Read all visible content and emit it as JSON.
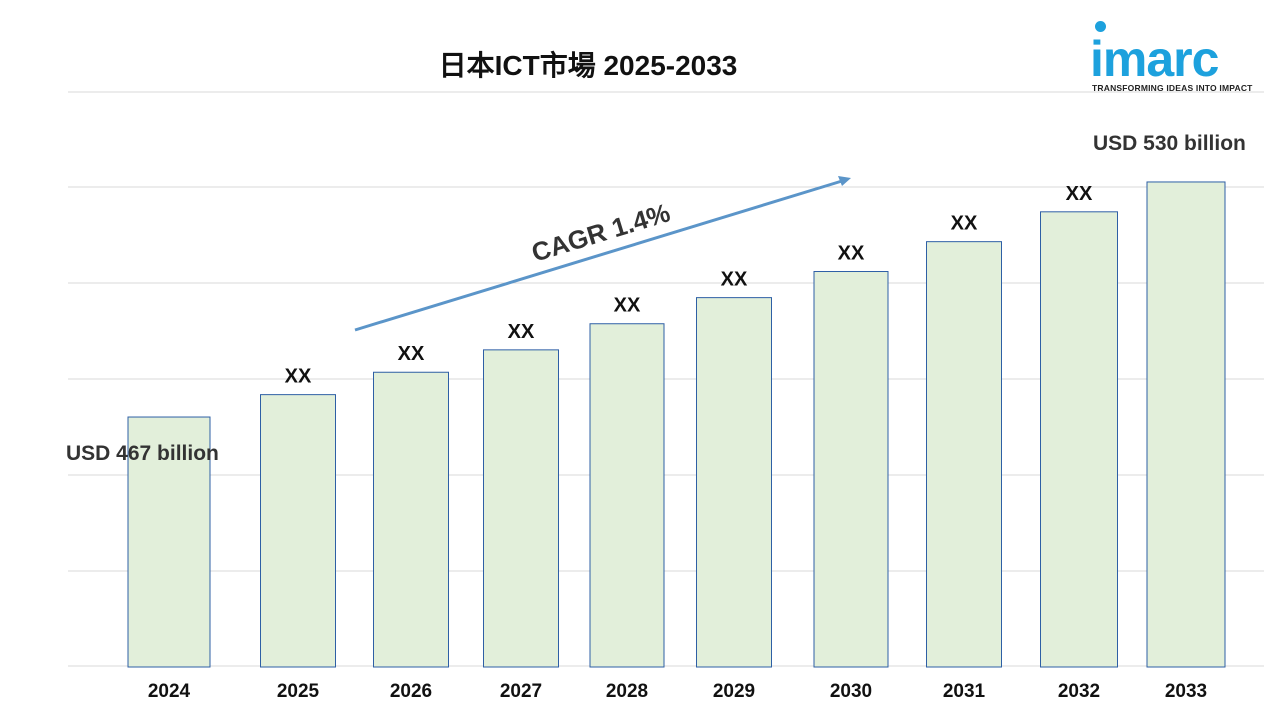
{
  "title": "日本ICT市場 2025-2033",
  "logo": {
    "word": "imarc",
    "tagline": "TRANSFORMING IDEAS INTO IMPACT"
  },
  "colors": {
    "bar_fill": "#e2efda",
    "bar_stroke": "#2e5fa5",
    "arrow": "#5b95c9",
    "brand": "#1da1dd"
  },
  "chart_data": {
    "type": "bar",
    "title": "日本ICT市場 2025-2033",
    "xlabel": "",
    "ylabel": "",
    "categories": [
      "2024",
      "2025",
      "2026",
      "2027",
      "2028",
      "2029",
      "2030",
      "2031",
      "2032",
      "2033"
    ],
    "values": [
      467,
      473,
      479,
      485,
      492,
      499,
      506,
      514,
      522,
      530
    ],
    "bar_labels": [
      "",
      "XX",
      "XX",
      "XX",
      "XX",
      "XX",
      "XX",
      "XX",
      "XX",
      ""
    ],
    "ylim": [
      400,
      545
    ],
    "grid": true,
    "legend": "none",
    "annotations": {
      "start": "USD 467 billion",
      "end": "USD 530 billion",
      "cagr": "CAGR 1.4%"
    }
  }
}
